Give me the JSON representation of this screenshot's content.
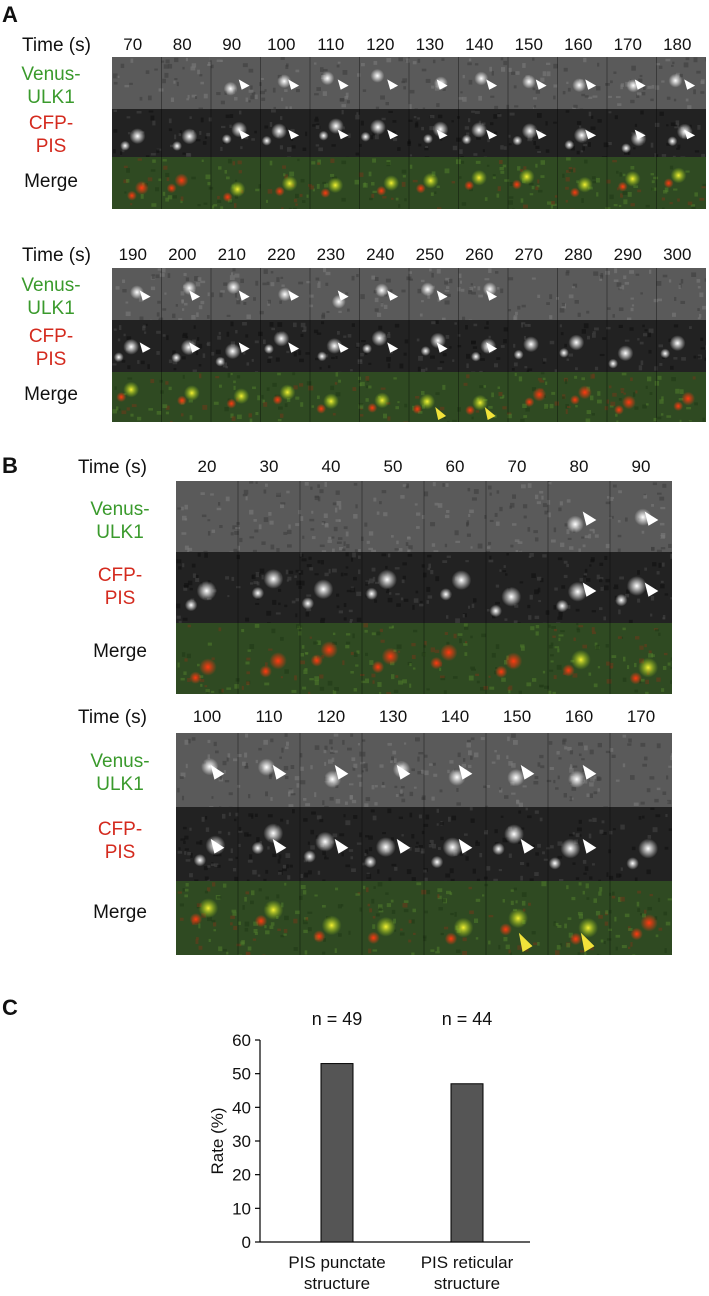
{
  "panels": {
    "A": {
      "letter": "A",
      "blocks": [
        {
          "time_label": "Time (s)",
          "times": [
            "70",
            "80",
            "90",
            "100",
            "110",
            "120",
            "130",
            "140",
            "150",
            "160",
            "170",
            "180"
          ],
          "channels": [
            {
              "line1": "Venus-",
              "line2": "ULK1",
              "color": "#3a9a2c"
            },
            {
              "line1": "CFP-",
              "line2": "PIS",
              "color": "#d42a1e"
            },
            {
              "line1": "Merge",
              "line2": "",
              "color": "#111111"
            }
          ]
        },
        {
          "time_label": "Time (s)",
          "times": [
            "190",
            "200",
            "210",
            "220",
            "230",
            "240",
            "250",
            "260",
            "270",
            "280",
            "290",
            "300"
          ],
          "channels": [
            {
              "line1": "Venus-",
              "line2": "ULK1",
              "color": "#3a9a2c"
            },
            {
              "line1": "CFP-",
              "line2": "PIS",
              "color": "#d42a1e"
            },
            {
              "line1": "Merge",
              "line2": "",
              "color": "#111111"
            }
          ]
        }
      ]
    },
    "B": {
      "letter": "B",
      "blocks": [
        {
          "time_label": "Time (s)",
          "times": [
            "20",
            "30",
            "40",
            "50",
            "60",
            "70",
            "80",
            "90"
          ],
          "channels": [
            {
              "line1": "Venus-",
              "line2": "ULK1",
              "color": "#3a9a2c"
            },
            {
              "line1": "CFP-",
              "line2": "PIS",
              "color": "#d42a1e"
            },
            {
              "line1": "Merge",
              "line2": "",
              "color": "#111111"
            }
          ]
        },
        {
          "time_label": "Time (s)",
          "times": [
            "100",
            "110",
            "120",
            "130",
            "140",
            "150",
            "160",
            "170"
          ],
          "channels": [
            {
              "line1": "Venus-",
              "line2": "ULK1",
              "color": "#3a9a2c"
            },
            {
              "line1": "CFP-",
              "line2": "PIS",
              "color": "#d42a1e"
            },
            {
              "line1": "Merge",
              "line2": "",
              "color": "#111111"
            }
          ]
        }
      ]
    },
    "C": {
      "letter": "C"
    }
  },
  "chart_data": {
    "type": "bar",
    "categories": [
      [
        "PIS punctate",
        "structure"
      ],
      [
        "PIS reticular",
        "structure"
      ]
    ],
    "values": [
      53,
      47
    ],
    "annotations": [
      "n = 49",
      "n = 44"
    ],
    "ylabel": "Rate (%)",
    "ylim": [
      0,
      60
    ],
    "yticks": [
      "0",
      "10",
      "20",
      "30",
      "40",
      "50",
      "60"
    ],
    "bar_color": "#555555",
    "grid": false
  }
}
